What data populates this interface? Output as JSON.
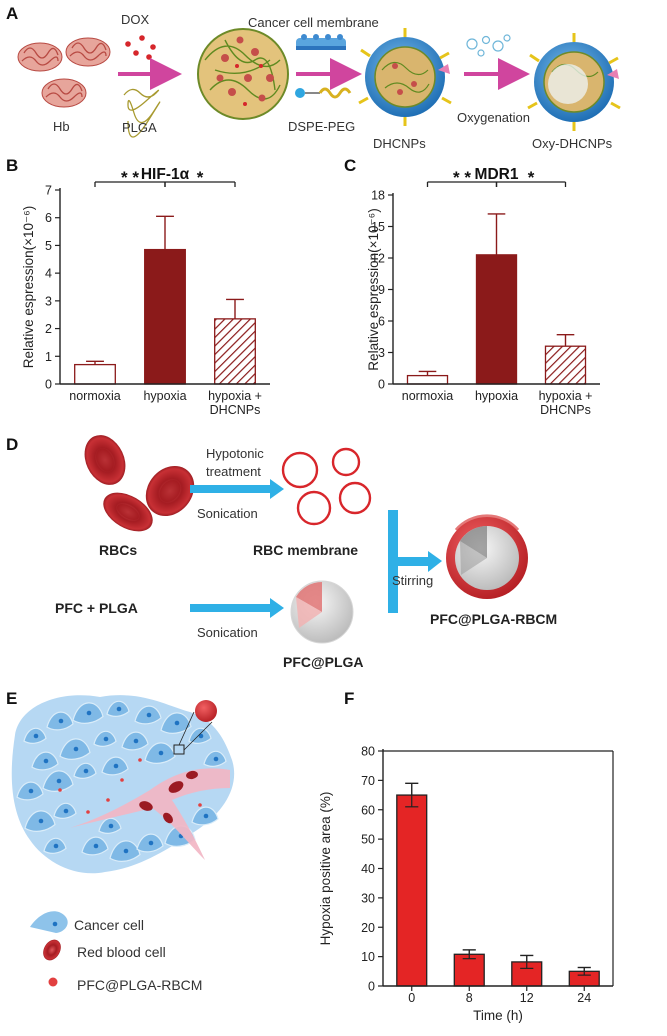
{
  "panels": {
    "A": {
      "label": "A",
      "labels": {
        "dox": "DOX",
        "hb": "Hb",
        "plga": "PLGA",
        "membrane": "Cancer cell  membrane",
        "dspe": "DSPE-PEG",
        "dhcnps": "DHCNPs",
        "oxygenation": "Oxygenation",
        "oxy": "Oxy-DHCNPs"
      },
      "colors": {
        "arrow": "#d0459e",
        "hb": "#c8575a",
        "plga": "#b8a848",
        "shell": "#3a8fd0"
      }
    },
    "B": {
      "label": "B"
    },
    "C": {
      "label": "C"
    },
    "D": {
      "label": "D",
      "labels": {
        "rbcs": "RBCs",
        "hypotonic_1": "Hypotonic",
        "hypotonic_2": "treatment",
        "sonication_1": "Sonication",
        "rbc_membrane": "RBC membrane",
        "pfc_plga_in": "PFC + PLGA",
        "sonication_2": "Sonication",
        "pfc_plga": "PFC@PLGA",
        "stirring": "Stirring",
        "product": "PFC@PLGA-RBCM"
      },
      "colors": {
        "arrow": "#2fb0e6",
        "rbc": "#b8262a"
      }
    },
    "E": {
      "label": "E",
      "legend": [
        {
          "label": "Cancer cell",
          "icon": "cancer-cell-icon"
        },
        {
          "label": "Red blood cell",
          "icon": "red-blood-cell-icon"
        },
        {
          "label": "PFC@PLGA-RBCM",
          "icon": "nanoparticle-icon"
        }
      ],
      "colors": {
        "cell": "#8ec3ea",
        "nucleus": "#1f73c2",
        "vessel": "#f2b6c4"
      }
    },
    "F": {
      "label": "F"
    }
  },
  "chart_data": [
    {
      "id": "B",
      "type": "bar",
      "title": "HIF-1α",
      "ylabel": "Relative espression(×10⁻⁶)",
      "categories": [
        "normoxia",
        "hypoxia",
        "hypoxia +|DHCNPs"
      ],
      "values": [
        0.7,
        4.85,
        2.35
      ],
      "errors": [
        0.12,
        1.2,
        0.7
      ],
      "ylim": [
        0,
        7
      ],
      "yticks": [
        0,
        1,
        2,
        3,
        4,
        5,
        6,
        7
      ],
      "styles": [
        "open",
        "solid",
        "hatched"
      ],
      "significance": [
        {
          "from": 0,
          "to": 1,
          "label": "* *"
        },
        {
          "from": 1,
          "to": 2,
          "label": "*"
        }
      ],
      "color": "#8b1a1a"
    },
    {
      "id": "C",
      "type": "bar",
      "title": "MDR1",
      "ylabel": "Relative espression(×10⁻⁶)",
      "categories": [
        "normoxia",
        "hypoxia",
        "hypoxia +|DHCNPs"
      ],
      "values": [
        0.8,
        12.3,
        3.6
      ],
      "errors": [
        0.4,
        3.9,
        1.1
      ],
      "ylim": [
        0,
        18
      ],
      "yticks": [
        0,
        3,
        6,
        9,
        12,
        15,
        18
      ],
      "styles": [
        "open",
        "solid",
        "hatched"
      ],
      "significance": [
        {
          "from": 0,
          "to": 1,
          "label": "* *"
        },
        {
          "from": 1,
          "to": 2,
          "label": "*"
        }
      ],
      "color": "#8b1a1a"
    },
    {
      "id": "F",
      "type": "bar",
      "title": "",
      "xlabel": "Time (h)",
      "ylabel": "Hypoxia positive area (%)",
      "categories": [
        "0",
        "8",
        "12",
        "24"
      ],
      "values": [
        65,
        10.8,
        8.2,
        5.0
      ],
      "errors": [
        4,
        1.5,
        2.2,
        1.3
      ],
      "ylim": [
        0,
        80
      ],
      "yticks": [
        0,
        10,
        20,
        30,
        40,
        50,
        60,
        70,
        80
      ],
      "color": "#e42525"
    }
  ]
}
